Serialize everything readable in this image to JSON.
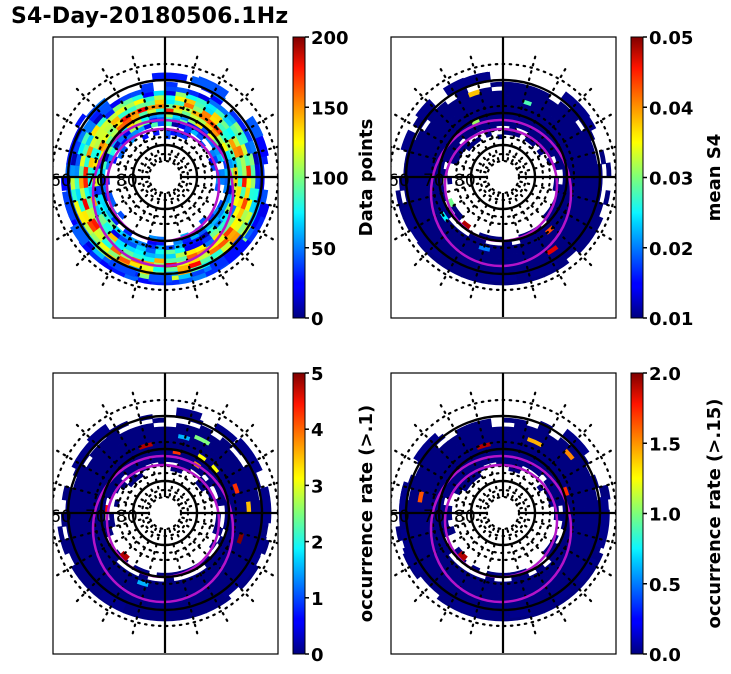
{
  "figure": {
    "title": "S4-Day-20180506.1Hz"
  },
  "chart_data": [
    {
      "type": "heatmap",
      "projection": "polar (magnetic latitude / local time)",
      "title": "",
      "colormap": "jet",
      "colorbar": {
        "label": "Data points",
        "range": [
          0,
          200
        ],
        "ticks": [
          "0",
          "50",
          "100",
          "150",
          "200"
        ]
      },
      "lat_tick_labels": [
        "60",
        "70",
        "80"
      ],
      "fill_profile": "mixed",
      "grid": true
    },
    {
      "type": "heatmap",
      "projection": "polar (magnetic latitude / local time)",
      "title": "",
      "colormap": "jet",
      "colorbar": {
        "label": "mean S4",
        "range": [
          0.01,
          0.05
        ],
        "ticks": [
          "0.01",
          "0.02",
          "0.03",
          "0.04",
          "0.05"
        ]
      },
      "lat_tick_labels": [
        "60",
        "70",
        "80"
      ],
      "fill_profile": "low",
      "grid": true
    },
    {
      "type": "heatmap",
      "projection": "polar (magnetic latitude / local time)",
      "title": "",
      "colormap": "jet",
      "colorbar": {
        "label": "occurrence rate (>.1)",
        "range": [
          0,
          5
        ],
        "ticks": [
          "0",
          "1",
          "2",
          "3",
          "4",
          "5"
        ]
      },
      "lat_tick_labels": [
        "60",
        "70",
        "80"
      ],
      "fill_profile": "low",
      "grid": true
    },
    {
      "type": "heatmap",
      "projection": "polar (magnetic latitude / local time)",
      "title": "",
      "colormap": "jet",
      "colorbar": {
        "label": "occurrence rate (>.15)",
        "range": [
          0.0,
          2.0
        ],
        "ticks": [
          "0.0",
          "0.5",
          "1.0",
          "1.5",
          "2.0"
        ]
      },
      "lat_tick_labels": [
        "60",
        "70",
        "80"
      ],
      "fill_profile": "low",
      "grid": true
    }
  ]
}
